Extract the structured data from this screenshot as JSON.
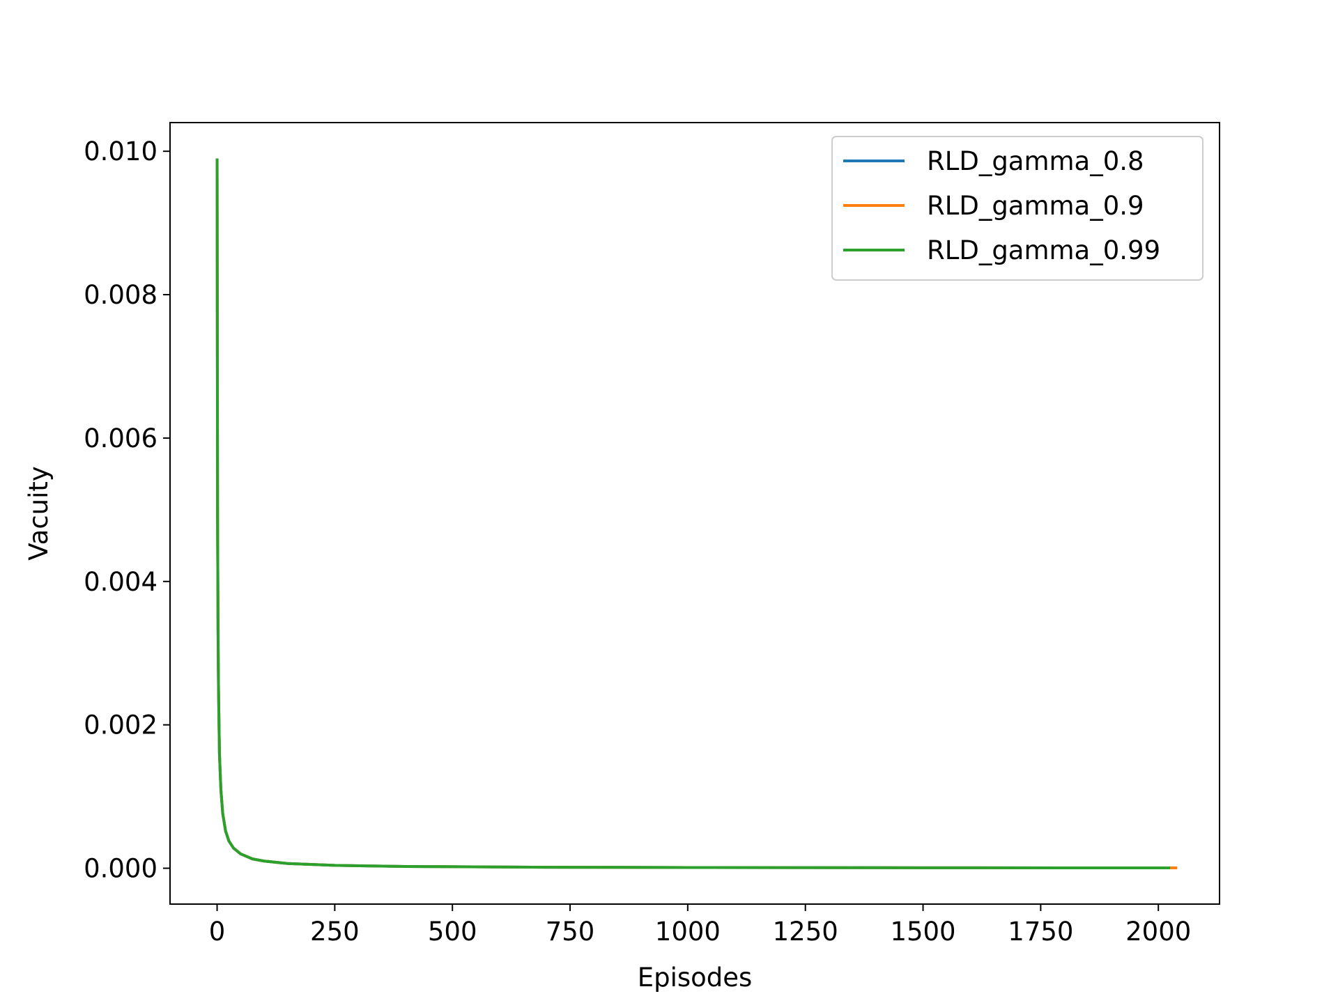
{
  "chart_data": {
    "type": "line",
    "title": "",
    "xlabel": "Episodes",
    "ylabel": "Vacuity",
    "xlim": [
      -100,
      2130
    ],
    "ylim": [
      -0.0005,
      0.0104
    ],
    "xticks": [
      0,
      250,
      500,
      750,
      1000,
      1250,
      1500,
      1750,
      2000
    ],
    "xtick_labels": [
      "0",
      "250",
      "500",
      "750",
      "1000",
      "1250",
      "1500",
      "1750",
      "2000"
    ],
    "yticks": [
      0.0,
      0.002,
      0.004,
      0.006,
      0.008,
      0.01
    ],
    "ytick_labels": [
      "0.000",
      "0.002",
      "0.004",
      "0.006",
      "0.008",
      "0.010"
    ],
    "grid": false,
    "legend_position": "top-right",
    "series": [
      {
        "name": "RLD_gamma_0.8",
        "color": "#1f77b4",
        "x": [
          0,
          1,
          2,
          3,
          5,
          8,
          12,
          18,
          25,
          35,
          50,
          75,
          100,
          150,
          250,
          400,
          700,
          1000,
          1500,
          2030
        ],
        "y": [
          0.0099,
          0.0049,
          0.0033,
          0.0025,
          0.0016,
          0.0011,
          0.00076,
          0.00052,
          0.00038,
          0.00028,
          0.0002,
          0.00013,
          0.0001,
          6.6e-05,
          4e-05,
          2.5e-05,
          1.4e-05,
          1e-05,
          6.6e-06,
          5e-06
        ]
      },
      {
        "name": "RLD_gamma_0.9",
        "color": "#ff7f0e",
        "x": [
          0,
          1,
          2,
          3,
          5,
          8,
          12,
          18,
          25,
          35,
          50,
          75,
          100,
          150,
          250,
          400,
          700,
          1000,
          1500,
          2040
        ],
        "y": [
          0.0099,
          0.0049,
          0.0033,
          0.0025,
          0.0016,
          0.0011,
          0.00076,
          0.00052,
          0.00038,
          0.00028,
          0.0002,
          0.00013,
          0.0001,
          6.6e-05,
          4e-05,
          2.5e-05,
          1.4e-05,
          1e-05,
          6.6e-06,
          5e-06
        ]
      },
      {
        "name": "RLD_gamma_0.99",
        "color": "#2ca02c",
        "x": [
          0,
          1,
          2,
          3,
          5,
          8,
          12,
          18,
          25,
          35,
          50,
          75,
          100,
          150,
          250,
          400,
          700,
          1000,
          1500,
          2025
        ],
        "y": [
          0.0099,
          0.0049,
          0.0033,
          0.0025,
          0.0016,
          0.0011,
          0.00076,
          0.00052,
          0.00038,
          0.00028,
          0.0002,
          0.00013,
          0.0001,
          6.6e-05,
          4e-05,
          2.5e-05,
          1.4e-05,
          1e-05,
          6.6e-06,
          5e-06
        ]
      }
    ]
  }
}
